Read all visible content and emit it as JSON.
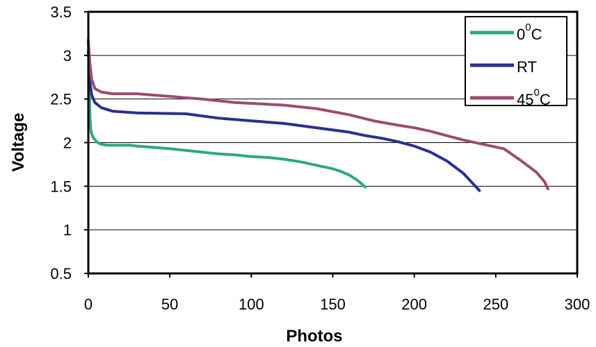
{
  "chart_data": {
    "type": "line",
    "title": "",
    "xlabel": "Photos",
    "ylabel": "Voltage",
    "xlim": [
      0,
      300
    ],
    "ylim": [
      0.5,
      3.5
    ],
    "xticks": [
      0,
      50,
      100,
      150,
      200,
      250,
      300
    ],
    "yticks": [
      0.5,
      1,
      1.5,
      2,
      2.5,
      3,
      3.5
    ],
    "xtick_labels": [
      "0",
      "50",
      "100",
      "150",
      "200",
      "250",
      "300"
    ],
    "ytick_labels": [
      "0.5",
      "1",
      "1.5",
      "2",
      "2.5",
      "3",
      "3.5"
    ],
    "grid": "horizontal",
    "legend_position": "top-right",
    "series": [
      {
        "name": "00C",
        "label_base": "0",
        "label_sup": "0",
        "label_suffix": "C",
        "color": "#2fa784",
        "points": [
          [
            0,
            3.18
          ],
          [
            0.5,
            2.7
          ],
          [
            1,
            2.3
          ],
          [
            1.5,
            2.15
          ],
          [
            2,
            2.1
          ],
          [
            3,
            2.06
          ],
          [
            5,
            2.01
          ],
          [
            8,
            1.98
          ],
          [
            12,
            1.97
          ],
          [
            25,
            1.97
          ],
          [
            30,
            1.96
          ],
          [
            50,
            1.93
          ],
          [
            60,
            1.91
          ],
          [
            70,
            1.89
          ],
          [
            80,
            1.87
          ],
          [
            90,
            1.86
          ],
          [
            100,
            1.84
          ],
          [
            110,
            1.83
          ],
          [
            120,
            1.81
          ],
          [
            130,
            1.78
          ],
          [
            140,
            1.74
          ],
          [
            150,
            1.7
          ],
          [
            155,
            1.67
          ],
          [
            160,
            1.63
          ],
          [
            165,
            1.57
          ],
          [
            170,
            1.49
          ]
        ]
      },
      {
        "name": "RT",
        "label_base": "RT",
        "label_sup": "",
        "label_suffix": "",
        "color": "#2b2e8f",
        "points": [
          [
            0,
            3.05
          ],
          [
            1,
            2.7
          ],
          [
            2,
            2.55
          ],
          [
            4,
            2.46
          ],
          [
            8,
            2.4
          ],
          [
            15,
            2.36
          ],
          [
            30,
            2.34
          ],
          [
            60,
            2.33
          ],
          [
            80,
            2.28
          ],
          [
            100,
            2.25
          ],
          [
            120,
            2.22
          ],
          [
            140,
            2.17
          ],
          [
            160,
            2.12
          ],
          [
            170,
            2.08
          ],
          [
            180,
            2.05
          ],
          [
            190,
            2.01
          ],
          [
            200,
            1.96
          ],
          [
            210,
            1.89
          ],
          [
            220,
            1.79
          ],
          [
            230,
            1.65
          ],
          [
            240,
            1.45
          ]
        ]
      },
      {
        "name": "450C",
        "label_base": "45",
        "label_sup": "0",
        "label_suffix": "C",
        "color": "#9c4a72",
        "points": [
          [
            0,
            3.15
          ],
          [
            1,
            2.9
          ],
          [
            2,
            2.73
          ],
          [
            4,
            2.62
          ],
          [
            8,
            2.58
          ],
          [
            15,
            2.56
          ],
          [
            30,
            2.56
          ],
          [
            50,
            2.53
          ],
          [
            70,
            2.5
          ],
          [
            90,
            2.46
          ],
          [
            110,
            2.44
          ],
          [
            120,
            2.43
          ],
          [
            140,
            2.39
          ],
          [
            160,
            2.32
          ],
          [
            175,
            2.25
          ],
          [
            190,
            2.2
          ],
          [
            200,
            2.17
          ],
          [
            210,
            2.13
          ],
          [
            220,
            2.08
          ],
          [
            230,
            2.03
          ],
          [
            245,
            1.97
          ],
          [
            255,
            1.93
          ],
          [
            265,
            1.8
          ],
          [
            275,
            1.66
          ],
          [
            280,
            1.55
          ],
          [
            282,
            1.47
          ]
        ]
      }
    ]
  }
}
